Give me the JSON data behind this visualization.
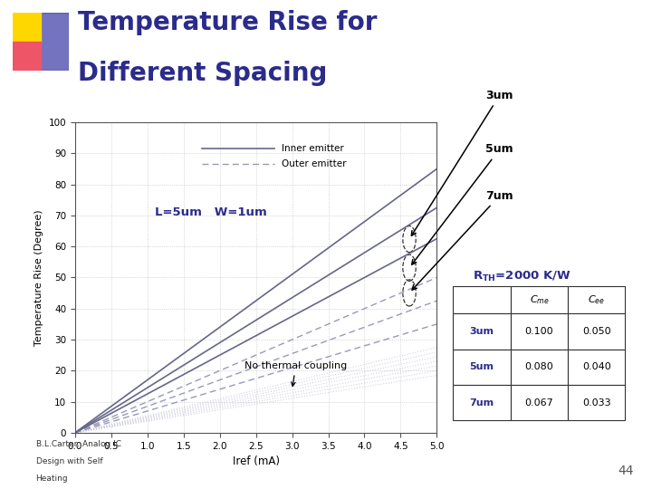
{
  "title_line1": "Temperature Rise for",
  "title_line2": "Different Spacing",
  "title_color": "#2B2B8B",
  "xlabel": "Iref (mA)",
  "ylabel": "Temperature Rise (Degree)",
  "xlim": [
    0,
    5
  ],
  "ylim": [
    0,
    100
  ],
  "xticks": [
    0,
    0.5,
    1,
    1.5,
    2,
    2.5,
    3,
    3.5,
    4,
    4.5,
    5
  ],
  "yticks": [
    0,
    10,
    20,
    30,
    40,
    50,
    60,
    70,
    80,
    90,
    100
  ],
  "bg_color": "#FFFFFF",
  "plot_area_color": "#FFFFFF",
  "grid_color": "#BBBBBB",
  "label_color": "#2B2B8B",
  "legend_inner": "Inner emitter",
  "legend_outer": "Outer emitter",
  "no_thermal_text": "No thermal coupling",
  "slope_inner_3um": 17.0,
  "slope_inner_5um": 14.5,
  "slope_inner_7um": 12.5,
  "slope_outer_3um": 10.0,
  "slope_outer_5um": 8.5,
  "slope_outer_7um": 7.0,
  "slope_no_coupling_lines": [
    5.5,
    5.2,
    4.9,
    4.6,
    4.3,
    4.0,
    3.7
  ],
  "table_rows": [
    "3um",
    "5um",
    "7um"
  ],
  "table_col_Cme": [
    "0.100",
    "0.080",
    "0.067"
  ],
  "table_col_Cee": [
    "0.050",
    "0.040",
    "0.033"
  ],
  "page_number": "44",
  "logo_gold": "#FFD700",
  "logo_red": "#EE5566",
  "logo_blue": "#4444AA"
}
